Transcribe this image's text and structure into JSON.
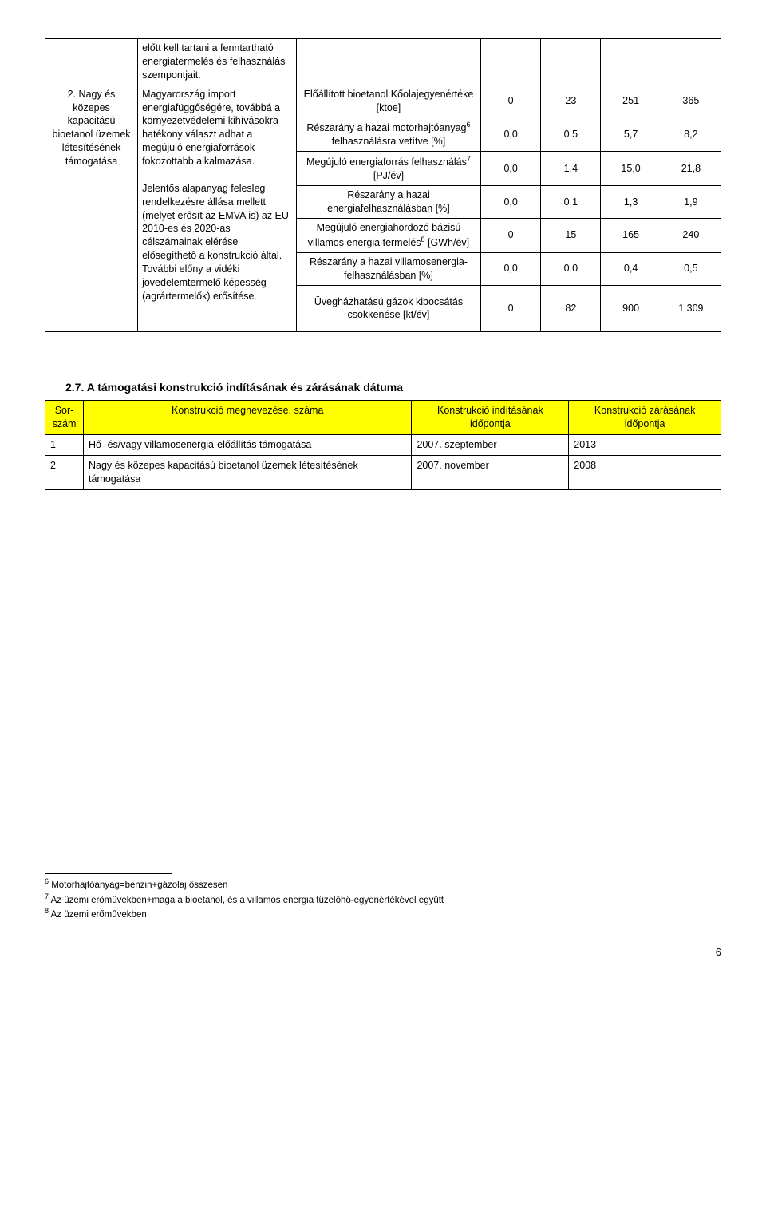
{
  "row1": {
    "text": "előtt kell tartani a fenntartható energiatermelés és felhasználás szempontjait."
  },
  "row2": {
    "leftLabel": "2. Nagy és közepes kapacitású bioetanol üzemek létesítésének támogatása",
    "narrativeP1": "Magyarország import energiafüggőségére, továbbá a környezetvédelemi kihívásokra hatékony választ adhat a megújuló energiaforrások fokozottabb alkalmazása.",
    "narrativeP2": "Jelentős alapanyag felesleg rendelkezésre állása mellett (melyet erősít az EMVA is) az EU 2010-es és 2020-as célszámainak elérése elősegíthető a konstrukció által. További előny a vidéki jövedelemtermelő képesség (agrártermelők) erősítése.",
    "indicators": [
      {
        "label": "Előállított bioetanol Kőolajegyenértéke [ktoe]",
        "v": [
          "0",
          "23",
          "251",
          "365"
        ]
      },
      {
        "label": "Részarány a hazai motorhajtóanyag",
        "sup": "6",
        "label2": " felhasználásra vetítve [%]",
        "v": [
          "0,0",
          "0,5",
          "5,7",
          "8,2"
        ]
      },
      {
        "label": "Megújuló energiaforrás felhasználás",
        "sup": "7",
        "label2": " [PJ/év]",
        "v": [
          "0,0",
          "1,4",
          "15,0",
          "21,8"
        ]
      },
      {
        "label": "Részarány a hazai energiafelhasználásban [%]",
        "v": [
          "0,0",
          "0,1",
          "1,3",
          "1,9"
        ]
      },
      {
        "label": "Megújuló energiahordozó bázisú villamos energia termelés",
        "sup": "8",
        "label2": " [GWh/év]",
        "v": [
          "0",
          "15",
          "165",
          "240"
        ]
      },
      {
        "label": "Részarány a hazai villamosenergia-felhasználásban [%]",
        "v": [
          "0,0",
          "0,0",
          "0,4",
          "0,5"
        ]
      },
      {
        "label": "Üvegházhatású gázok kibocsátás csökkenése [kt/év]",
        "v": [
          "0",
          "82",
          "900",
          "1 309"
        ]
      }
    ]
  },
  "section27": {
    "heading": "2.7.  A támogatási konstrukció indításának és zárásának dátuma",
    "headers": [
      "Sor-szám",
      "Konstrukció megnevezése, száma",
      "Konstrukció indításának időpontja",
      "Konstrukció zárásának időpontja"
    ],
    "rows": [
      [
        "1",
        "Hő- és/vagy villamosenergia-előállítás támogatása",
        "2007. szeptember",
        "2013"
      ],
      [
        "2",
        "Nagy és közepes kapacitású bioetanol üzemek létesítésének támogatása",
        "2007. november",
        "2008"
      ]
    ]
  },
  "footnotes": [
    {
      "num": "6",
      "text": " Motorhajtóanyag=benzin+gázolaj összesen"
    },
    {
      "num": "7",
      "text": "  Az üzemi erőművekben+maga a bioetanol, és a villamos energia tüzelőhő-egyenértékével együtt"
    },
    {
      "num": "8",
      "text": " Az üzemi erőművekben"
    }
  ],
  "pageNumber": "6"
}
